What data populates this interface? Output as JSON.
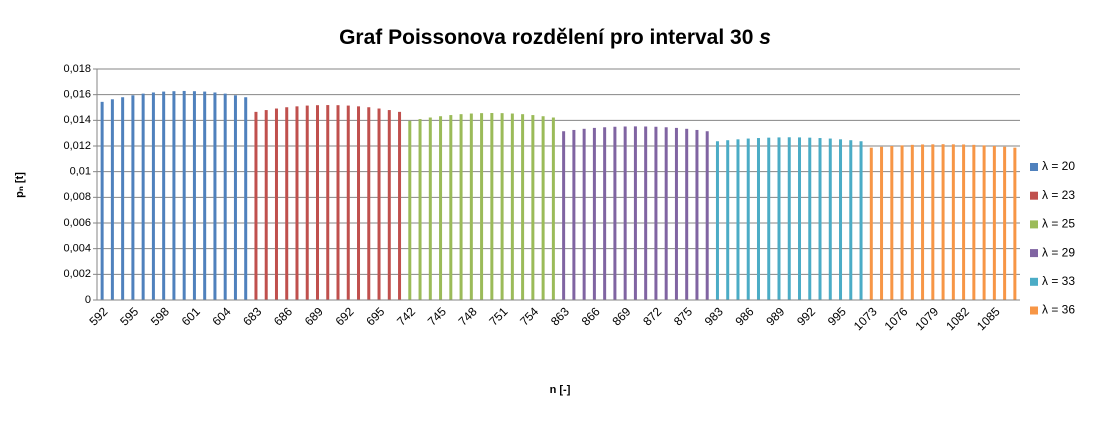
{
  "chart_data": {
    "type": "bar",
    "title": "Graf Poissonova rozdělení pro interval 30 ",
    "title_italic": "s",
    "x_label": "n [-]",
    "y_label": "pₙ [t]",
    "ylim": [
      0,
      0.018
    ],
    "yticks": [
      0,
      {
        "value": 0.002,
        "label": "0,002"
      },
      {
        "value": 0.004,
        "label": "0,004"
      },
      {
        "value": 0.006,
        "label": "0,006"
      },
      {
        "value": 0.008,
        "label": "0,008"
      },
      {
        "value": 0.01,
        "label": "0,01"
      },
      {
        "value": 0.012,
        "label": "0,012"
      },
      {
        "value": 0.014,
        "label": "0,014"
      },
      {
        "value": 0.016,
        "label": "0,016"
      },
      {
        "value": 0.018,
        "label": "0,018"
      }
    ],
    "grid": true,
    "legend": "right",
    "series": [
      {
        "name": "λ = 20",
        "color": "#4f81bd",
        "categories": [
          592,
          593,
          594,
          595,
          596,
          597,
          598,
          599,
          600,
          601,
          602,
          603,
          604,
          605,
          606
        ],
        "values": [
          0.01544,
          0.01564,
          0.0158,
          0.01595,
          0.01608,
          0.01617,
          0.01624,
          0.01627,
          0.01629,
          0.01627,
          0.01624,
          0.01617,
          0.01608,
          0.01595,
          0.0158
        ]
      },
      {
        "name": "λ = 23",
        "color": "#c0504d",
        "categories": [
          683,
          684,
          685,
          686,
          687,
          688,
          689,
          690,
          691,
          692,
          693,
          694,
          695,
          696,
          697
        ],
        "values": [
          0.01466,
          0.0148,
          0.01492,
          0.01502,
          0.01509,
          0.01515,
          0.01518,
          0.01519,
          0.01518,
          0.01515,
          0.01509,
          0.01502,
          0.01492,
          0.0148,
          0.01466
        ]
      },
      {
        "name": "λ = 25",
        "color": "#9bbb59",
        "categories": [
          742,
          743,
          744,
          745,
          746,
          747,
          748,
          749,
          750,
          751,
          752,
          753,
          754,
          755,
          756
        ],
        "values": [
          0.01396,
          0.0141,
          0.01422,
          0.01432,
          0.01441,
          0.01448,
          0.01453,
          0.01456,
          0.01457,
          0.01456,
          0.01453,
          0.01448,
          0.01441,
          0.01432,
          0.01422
        ]
      },
      {
        "name": "λ = 29",
        "color": "#8064a2",
        "categories": [
          863,
          864,
          865,
          866,
          867,
          868,
          869,
          870,
          871,
          872,
          873,
          874,
          875,
          876,
          877
        ],
        "values": [
          0.01315,
          0.01325,
          0.01334,
          0.01341,
          0.01346,
          0.0135,
          0.01352,
          0.01353,
          0.01352,
          0.0135,
          0.01346,
          0.01341,
          0.01334,
          0.01325,
          0.01315
        ]
      },
      {
        "name": "λ = 33",
        "color": "#4bacc6",
        "categories": [
          983,
          984,
          985,
          986,
          987,
          988,
          989,
          990,
          991,
          992,
          993,
          994,
          995,
          996,
          997
        ],
        "values": [
          0.01237,
          0.01245,
          0.01252,
          0.01258,
          0.01262,
          0.01265,
          0.01267,
          0.01268,
          0.01267,
          0.01265,
          0.01262,
          0.01258,
          0.01252,
          0.01245,
          0.01237
        ]
      },
      {
        "name": "λ = 36",
        "color": "#f79646",
        "categories": [
          1073,
          1074,
          1075,
          1076,
          1077,
          1078,
          1079,
          1080,
          1081,
          1082,
          1083,
          1084,
          1085,
          1086,
          1087
        ],
        "values": [
          0.01187,
          0.01194,
          0.012,
          0.01205,
          0.01209,
          0.01212,
          0.01213,
          0.01214,
          0.01213,
          0.01212,
          0.01209,
          0.01205,
          0.012,
          0.01194,
          0.01187
        ]
      }
    ]
  }
}
